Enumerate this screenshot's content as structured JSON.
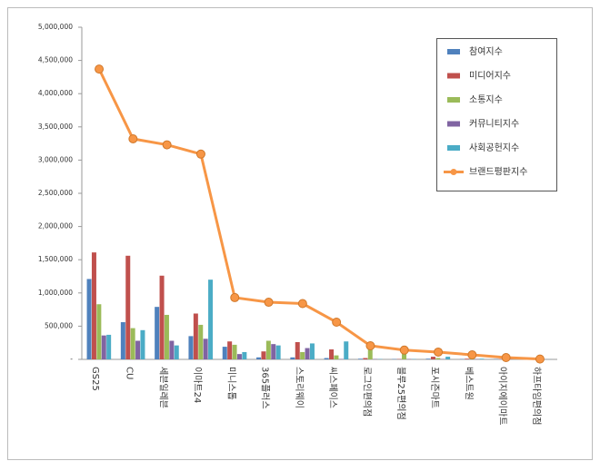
{
  "chart_data": {
    "type": "bar_line",
    "categories": [
      "GS25",
      "CU",
      "세븐일레븐",
      "이마트24",
      "미니스톱",
      "365플러스",
      "스토리웨이",
      "씨스페이스",
      "로그인편의점",
      "블루25편의점",
      "포시즌마트",
      "베스트원",
      "아이지에이마트",
      "하프타임편의점"
    ],
    "series": [
      {
        "name": "참여지수",
        "color": "#4f81bd",
        "kind": "bar",
        "values": [
          1210000,
          560000,
          790000,
          350000,
          190000,
          30000,
          30000,
          20000,
          10000,
          5000,
          10000,
          5000,
          5000,
          1000
        ]
      },
      {
        "name": "미디어지수",
        "color": "#c0504d",
        "kind": "bar",
        "values": [
          1610000,
          1560000,
          1260000,
          690000,
          270000,
          120000,
          260000,
          150000,
          20000,
          5000,
          40000,
          10000,
          5000,
          1000
        ]
      },
      {
        "name": "소통지수",
        "color": "#9bbb59",
        "kind": "bar",
        "values": [
          830000,
          470000,
          670000,
          520000,
          220000,
          280000,
          110000,
          60000,
          190000,
          130000,
          20000,
          40000,
          10000,
          1000
        ]
      },
      {
        "name": "커뮤니티지수",
        "color": "#8064a2",
        "kind": "bar",
        "values": [
          360000,
          280000,
          280000,
          310000,
          80000,
          230000,
          170000,
          5000,
          5000,
          5000,
          5000,
          5000,
          5000,
          1000
        ]
      },
      {
        "name": "사회공헌지수",
        "color": "#4bacc6",
        "kind": "bar",
        "values": [
          370000,
          440000,
          210000,
          1200000,
          110000,
          210000,
          240000,
          270000,
          5000,
          5000,
          40000,
          10000,
          5000,
          1000
        ]
      },
      {
        "name": "브랜드평판지수",
        "color": "#f79646",
        "kind": "line",
        "values": [
          4370000,
          3320000,
          3230000,
          3090000,
          930000,
          860000,
          840000,
          560000,
          205000,
          140000,
          110000,
          68000,
          27000,
          5000
        ]
      }
    ],
    "ylim": [
      0,
      5000000
    ],
    "yticks": [
      {
        "value": 0,
        "label": "-"
      },
      {
        "value": 500000,
        "label": "500,000"
      },
      {
        "value": 1000000,
        "label": "1,000,000"
      },
      {
        "value": 1500000,
        "label": "1,500,000"
      },
      {
        "value": 2000000,
        "label": "2,000,000"
      },
      {
        "value": 2500000,
        "label": "2,500,000"
      },
      {
        "value": 3000000,
        "label": "3,000,000"
      },
      {
        "value": 3500000,
        "label": "3,500,000"
      },
      {
        "value": 4000000,
        "label": "4,000,000"
      },
      {
        "value": 4500000,
        "label": "4,500,000"
      },
      {
        "value": 5000000,
        "label": "5,000,000"
      }
    ],
    "grid": false,
    "legend": "top-right"
  }
}
